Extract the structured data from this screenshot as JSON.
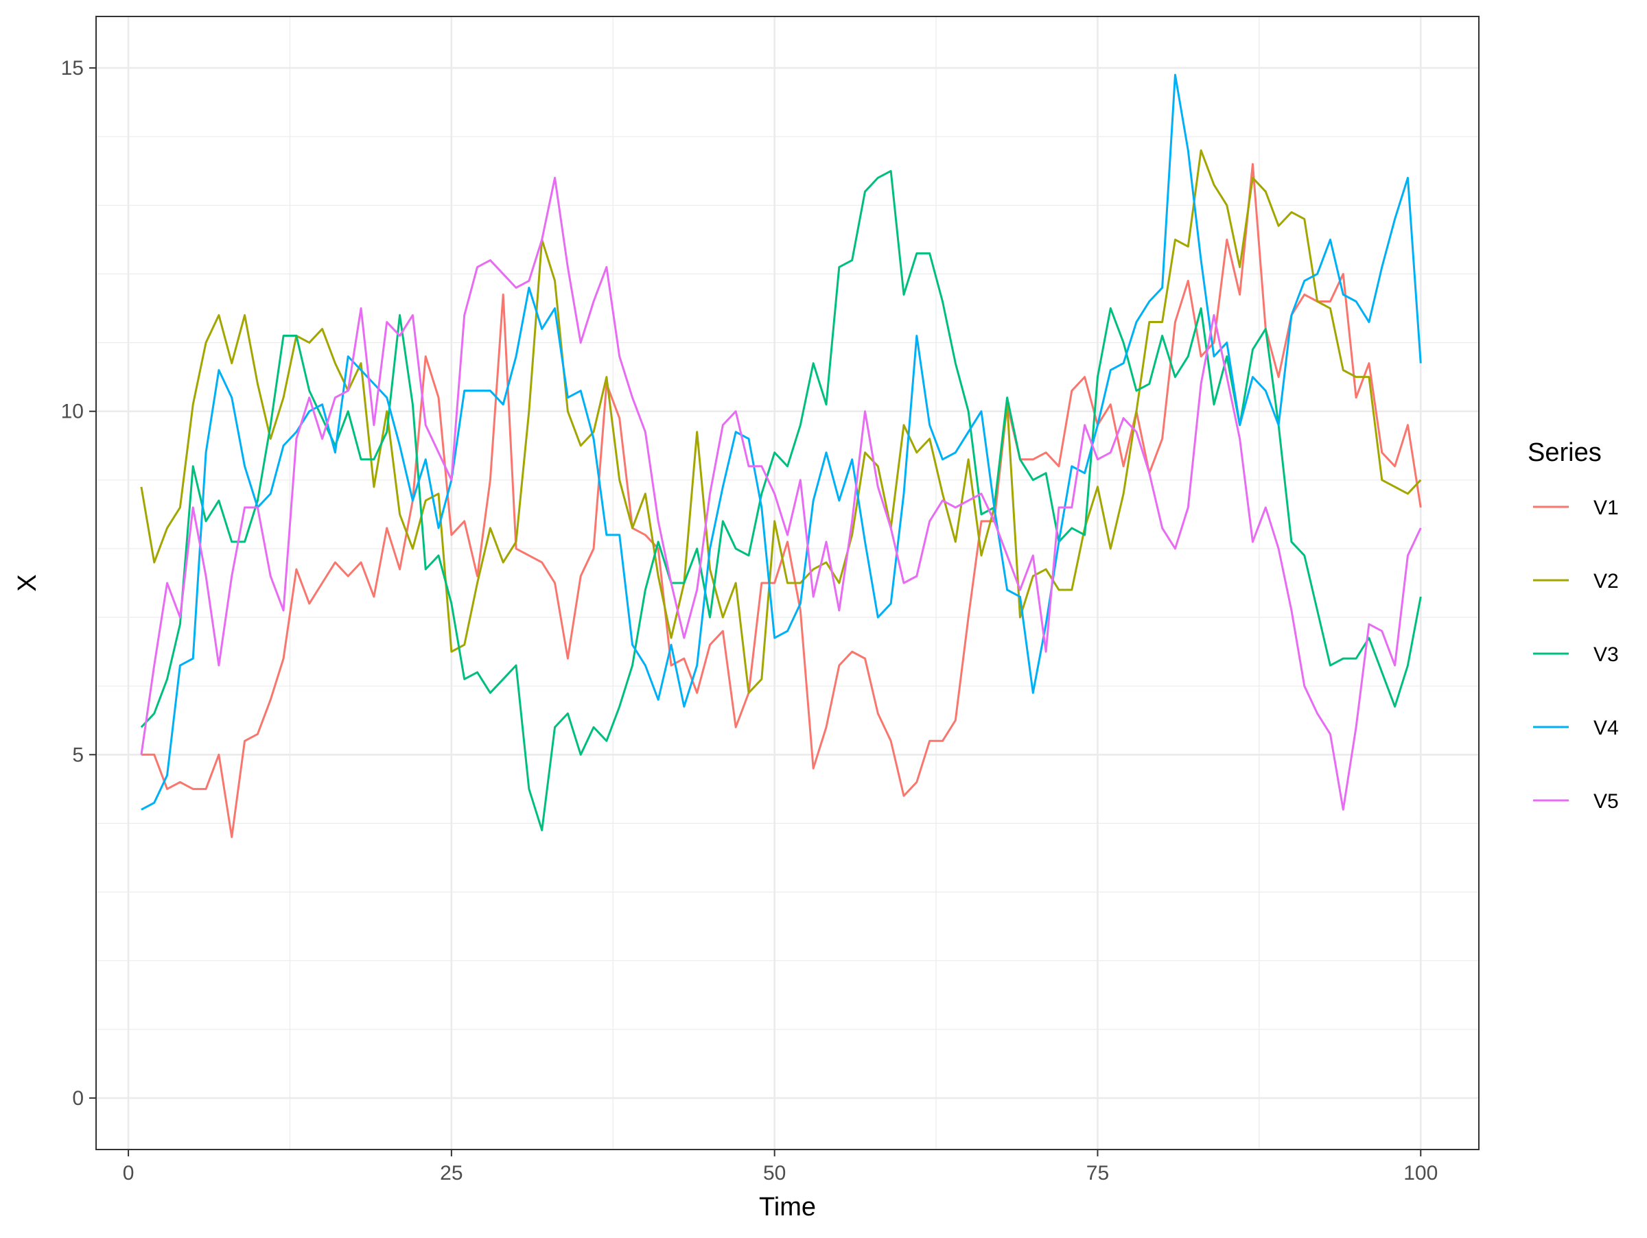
{
  "chart_data": {
    "type": "line",
    "xlabel": "Time",
    "ylabel": "X",
    "xlim": [
      -2.5,
      104.5
    ],
    "ylim": [
      -0.75,
      15.75
    ],
    "xticks": [
      0,
      25,
      50,
      75,
      100
    ],
    "xtick_labels": [
      "0",
      "25",
      "50",
      "75",
      "100"
    ],
    "xminor": [
      12.5,
      37.5,
      62.5,
      87.5
    ],
    "yticks": [
      0,
      5,
      10,
      15
    ],
    "ytick_labels": [
      "0",
      "5",
      "10",
      "15"
    ],
    "yminor": [
      1,
      2,
      3,
      4,
      6,
      7,
      8,
      9,
      11,
      12,
      13,
      14
    ],
    "grid": true,
    "legend_position": "right",
    "legend_title": "Series",
    "x": [
      1,
      2,
      3,
      4,
      5,
      6,
      7,
      8,
      9,
      10,
      11,
      12,
      13,
      14,
      15,
      16,
      17,
      18,
      19,
      20,
      21,
      22,
      23,
      24,
      25,
      26,
      27,
      28,
      29,
      30,
      31,
      32,
      33,
      34,
      35,
      36,
      37,
      38,
      39,
      40,
      41,
      42,
      43,
      44,
      45,
      46,
      47,
      48,
      49,
      50,
      51,
      52,
      53,
      54,
      55,
      56,
      57,
      58,
      59,
      60,
      61,
      62,
      63,
      64,
      65,
      66,
      67,
      68,
      69,
      70,
      71,
      72,
      73,
      74,
      75,
      76,
      77,
      78,
      79,
      80,
      81,
      82,
      83,
      84,
      85,
      86,
      87,
      88,
      89,
      90,
      91,
      92,
      93,
      94,
      95,
      96,
      97,
      98,
      99,
      100
    ],
    "series": [
      {
        "name": "V1",
        "color": "#F8766D",
        "values": [
          5.0,
          5.0,
          4.5,
          4.6,
          4.5,
          4.5,
          5.0,
          3.8,
          5.2,
          5.3,
          5.8,
          6.4,
          7.7,
          7.2,
          7.5,
          7.8,
          7.6,
          7.8,
          7.3,
          8.3,
          7.7,
          8.7,
          10.8,
          10.2,
          8.2,
          8.4,
          7.6,
          9.0,
          11.7,
          8.0,
          7.9,
          7.8,
          7.5,
          6.4,
          7.6,
          8.0,
          10.4,
          9.9,
          8.3,
          8.2,
          8.0,
          6.3,
          6.4,
          5.9,
          6.6,
          6.8,
          5.4,
          5.9,
          7.5,
          7.5,
          8.1,
          7.1,
          4.8,
          5.4,
          6.3,
          6.5,
          6.4,
          5.6,
          5.2,
          4.4,
          4.6,
          5.2,
          5.2,
          5.5,
          7.0,
          8.4,
          8.4,
          10.1,
          9.3,
          9.3,
          9.4,
          9.2,
          10.3,
          10.5,
          9.8,
          10.1,
          9.2,
          10.0,
          9.1,
          9.6,
          11.3,
          11.9,
          10.8,
          11.0,
          12.5,
          11.7,
          13.6,
          11.2,
          10.5,
          11.4,
          11.7,
          11.6,
          11.6,
          12.0,
          10.2,
          10.7,
          9.4,
          9.2,
          9.8,
          8.6
        ]
      },
      {
        "name": "V2",
        "color": "#A3A500",
        "values": [
          8.9,
          7.8,
          8.3,
          8.6,
          10.1,
          11.0,
          11.4,
          10.7,
          11.4,
          10.4,
          9.6,
          10.2,
          11.1,
          11.0,
          11.2,
          10.7,
          10.3,
          10.7,
          8.9,
          10.0,
          8.5,
          8.0,
          8.7,
          8.8,
          6.5,
          6.6,
          7.5,
          8.3,
          7.8,
          8.1,
          10.0,
          12.5,
          11.9,
          10.0,
          9.5,
          9.7,
          10.5,
          9.0,
          8.3,
          8.8,
          7.6,
          6.7,
          7.5,
          9.7,
          7.7,
          7.0,
          7.5,
          5.9,
          6.1,
          8.4,
          7.5,
          7.5,
          7.7,
          7.8,
          7.5,
          8.2,
          9.4,
          9.2,
          8.3,
          9.8,
          9.4,
          9.6,
          8.8,
          8.1,
          9.3,
          7.9,
          8.6,
          10.1,
          7.0,
          7.6,
          7.7,
          7.4,
          7.4,
          8.3,
          8.9,
          8.0,
          8.8,
          10.0,
          11.3,
          11.3,
          12.5,
          12.4,
          13.8,
          13.3,
          13.0,
          12.1,
          13.4,
          13.2,
          12.7,
          12.9,
          12.8,
          11.6,
          11.5,
          10.6,
          10.5,
          10.5,
          9.0,
          8.9,
          8.8,
          9.0
        ]
      },
      {
        "name": "V3",
        "color": "#00BF7D",
        "values": [
          5.4,
          5.6,
          6.1,
          6.9,
          9.2,
          8.4,
          8.7,
          8.1,
          8.1,
          8.7,
          9.8,
          11.1,
          11.1,
          10.3,
          9.9,
          9.5,
          10.0,
          9.3,
          9.3,
          9.7,
          11.4,
          10.1,
          7.7,
          7.9,
          7.2,
          6.1,
          6.2,
          5.9,
          6.1,
          6.3,
          4.5,
          3.9,
          5.4,
          5.6,
          5.0,
          5.4,
          5.2,
          5.7,
          6.3,
          7.4,
          8.1,
          7.5,
          7.5,
          8.0,
          7.0,
          8.4,
          8.0,
          7.9,
          8.8,
          9.4,
          9.2,
          9.8,
          10.7,
          10.1,
          12.1,
          12.2,
          13.2,
          13.4,
          13.5,
          11.7,
          12.3,
          12.3,
          11.6,
          10.7,
          10.0,
          8.5,
          8.6,
          10.2,
          9.3,
          9.0,
          9.1,
          8.1,
          8.3,
          8.2,
          10.5,
          11.5,
          11.0,
          10.3,
          10.4,
          11.1,
          10.5,
          10.8,
          11.5,
          10.1,
          10.8,
          9.8,
          10.9,
          11.2,
          9.8,
          8.1,
          7.9,
          7.1,
          6.3,
          6.4,
          6.4,
          6.7,
          6.2,
          5.7,
          6.3,
          7.3
        ]
      },
      {
        "name": "V4",
        "color": "#00B0F6",
        "values": [
          4.2,
          4.3,
          4.7,
          6.3,
          6.4,
          9.4,
          10.6,
          10.2,
          9.2,
          8.6,
          8.8,
          9.5,
          9.7,
          10.0,
          10.1,
          9.4,
          10.8,
          10.6,
          10.4,
          10.2,
          9.5,
          8.7,
          9.3,
          8.3,
          9.0,
          10.3,
          10.3,
          10.3,
          10.1,
          10.8,
          11.8,
          11.2,
          11.5,
          10.2,
          10.3,
          9.6,
          8.2,
          8.2,
          6.6,
          6.3,
          5.8,
          6.6,
          5.7,
          6.3,
          8.0,
          8.9,
          9.7,
          9.6,
          8.6,
          6.7,
          6.8,
          7.2,
          8.7,
          9.4,
          8.7,
          9.3,
          8.1,
          7.0,
          7.2,
          8.8,
          11.1,
          9.8,
          9.3,
          9.4,
          9.7,
          10.0,
          8.6,
          7.4,
          7.3,
          5.9,
          6.9,
          8.1,
          9.2,
          9.1,
          9.8,
          10.6,
          10.7,
          11.3,
          11.6,
          11.8,
          14.9,
          13.8,
          12.2,
          10.8,
          11.0,
          9.8,
          10.5,
          10.3,
          9.8,
          11.4,
          11.9,
          12.0,
          12.5,
          11.7,
          11.6,
          11.3,
          12.1,
          12.8,
          13.4,
          10.7
        ]
      },
      {
        "name": "V5",
        "color": "#E76BF3",
        "values": [
          5.0,
          6.3,
          7.5,
          7.0,
          8.6,
          7.6,
          6.3,
          7.6,
          8.6,
          8.6,
          7.6,
          7.1,
          9.6,
          10.2,
          9.6,
          10.2,
          10.3,
          11.5,
          9.8,
          11.3,
          11.1,
          11.4,
          9.8,
          9.4,
          9.0,
          11.4,
          12.1,
          12.2,
          12.0,
          11.8,
          11.9,
          12.5,
          13.4,
          12.1,
          11.0,
          11.6,
          12.1,
          10.8,
          10.2,
          9.7,
          8.4,
          7.5,
          6.7,
          7.4,
          8.8,
          9.8,
          10.0,
          9.2,
          9.2,
          8.8,
          8.2,
          9.0,
          7.3,
          8.1,
          7.1,
          8.4,
          10.0,
          8.9,
          8.3,
          7.5,
          7.6,
          8.4,
          8.7,
          8.6,
          8.7,
          8.8,
          8.4,
          7.9,
          7.4,
          7.9,
          6.5,
          8.6,
          8.6,
          9.8,
          9.3,
          9.4,
          9.9,
          9.7,
          9.1,
          8.3,
          8.0,
          8.6,
          10.4,
          11.4,
          10.5,
          9.6,
          8.1,
          8.6,
          8.0,
          7.1,
          6.0,
          5.6,
          5.3,
          4.2,
          5.4,
          6.9,
          6.8,
          6.3,
          7.9,
          8.3
        ]
      }
    ]
  }
}
